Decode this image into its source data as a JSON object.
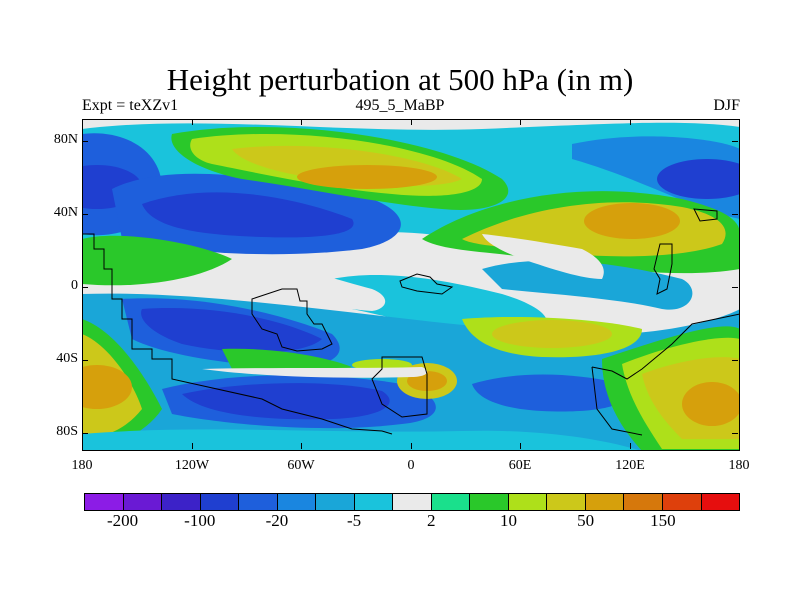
{
  "title": "Height perturbation at 500 hPa (in m)",
  "subtitle_left": "Expt = teXZv1",
  "subtitle_center": "495_5_MaBP",
  "subtitle_right": "DJF",
  "lat_labels": [
    "80N",
    "40N",
    "0",
    "40S",
    "80S"
  ],
  "lon_labels": [
    "180",
    "120W",
    "60W",
    "0",
    "60E",
    "120E",
    "180"
  ],
  "colorbar": {
    "colors": [
      "#8c1ce6",
      "#6a1ad4",
      "#3c22c8",
      "#1f3fd0",
      "#1e5fdc",
      "#1a86e0",
      "#1aa6d8",
      "#1ac3dc",
      "#eaeaea",
      "#1ae08c",
      "#2ac82a",
      "#aee01a",
      "#ccc81a",
      "#d6a00c",
      "#d6780c",
      "#de400c",
      "#e60e0e"
    ],
    "labels": [
      "-200",
      "-100",
      "-20",
      "-5",
      "2",
      "10",
      "50",
      "150"
    ]
  },
  "palette": {
    "blue_deep": "#1f3fd0",
    "blue_mid": "#1e5fdc",
    "blue_light": "#1a86e0",
    "cyan": "#1aa6d8",
    "cyan_light": "#1ac3dc",
    "neutral": "#eaeaea",
    "teal": "#1ae08c",
    "green": "#2ac82a",
    "yellow_green": "#aee01a",
    "yellow": "#ccc81a",
    "orange": "#d6a00c",
    "dark_orange": "#d6780c"
  }
}
